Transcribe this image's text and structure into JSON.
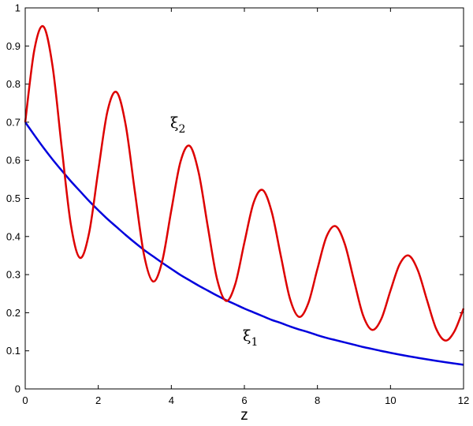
{
  "chart_data": {
    "type": "line",
    "xlabel": "z",
    "x": [
      0,
      0.25,
      0.5,
      0.75,
      1,
      1.25,
      1.5,
      1.75,
      2,
      2.25,
      2.5,
      2.75,
      3,
      3.25,
      3.5,
      3.75,
      4,
      4.25,
      4.5,
      4.75,
      5,
      5.25,
      5.5,
      5.75,
      6,
      6.25,
      6.5,
      6.75,
      7,
      7.25,
      7.5,
      7.75,
      8,
      8.25,
      8.5,
      8.75,
      9,
      9.25,
      9.5,
      9.75,
      10,
      10.25,
      10.5,
      10.75,
      11,
      11.25,
      11.5,
      11.75,
      12
    ],
    "series": [
      {
        "color": "#0000dd",
        "values": [
          0.7,
          0.666,
          0.633,
          0.602,
          0.573,
          0.545,
          0.519,
          0.493,
          0.469,
          0.446,
          0.425,
          0.404,
          0.384,
          0.365,
          0.348,
          0.331,
          0.315,
          0.299,
          0.285,
          0.271,
          0.258,
          0.245,
          0.233,
          0.222,
          0.211,
          0.201,
          0.191,
          0.181,
          0.173,
          0.164,
          0.156,
          0.149,
          0.141,
          0.134,
          0.128,
          0.122,
          0.116,
          0.11,
          0.105,
          0.0996,
          0.0947,
          0.0901,
          0.0857,
          0.0816,
          0.0776,
          0.0738,
          0.0702,
          0.0668,
          0.0635
        ]
      },
      {
        "color": "#dd0000",
        "values": [
          0.7,
          0.89,
          0.951,
          0.846,
          0.633,
          0.431,
          0.344,
          0.41,
          0.573,
          0.728,
          0.779,
          0.693,
          0.519,
          0.353,
          0.282,
          0.335,
          0.469,
          0.596,
          0.638,
          0.567,
          0.425,
          0.289,
          0.231,
          0.275,
          0.384,
          0.488,
          0.522,
          0.464,
          0.348,
          0.236,
          0.189,
          0.225,
          0.315,
          0.4,
          0.427,
          0.38,
          0.285,
          0.193,
          0.155,
          0.184,
          0.258,
          0.327,
          0.35,
          0.311,
          0.233,
          0.158,
          0.127,
          0.151,
          0.211
        ]
      }
    ],
    "annotations": [
      {
        "text": "ξ",
        "sub": "1"
      },
      {
        "text": "ξ",
        "sub": "2"
      }
    ],
    "xlim": [
      0,
      12
    ],
    "xticks": [
      0,
      2,
      4,
      6,
      8,
      10,
      12
    ],
    "ylim": [
      0,
      1
    ],
    "yticks": [
      0,
      0.1,
      0.2,
      0.3,
      0.4,
      0.5,
      0.6,
      0.7,
      0.8,
      0.9,
      1
    ]
  }
}
